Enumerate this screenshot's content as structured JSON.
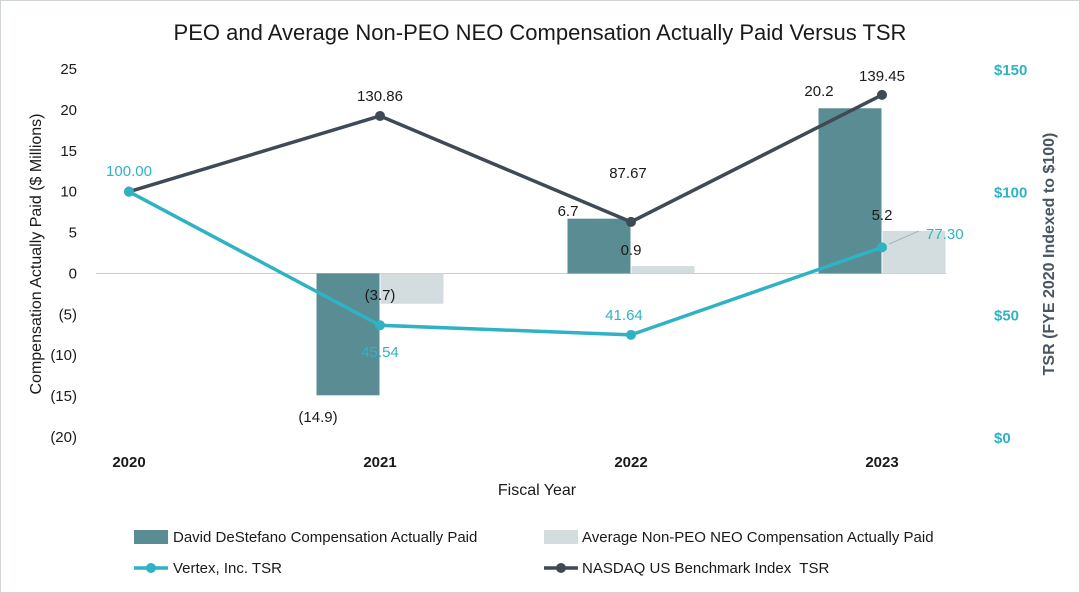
{
  "chart_data": {
    "type": "bar",
    "title": "PEO and Average Non-PEO NEO Compensation Actually Paid Versus TSR",
    "xlabel": "Fiscal Year",
    "ylabel": "Compensation Actually Paid ($ Millions)",
    "y2label": "TSR (FYE 2020 Indexed to $100)",
    "categories": [
      "2020",
      "2021",
      "2022",
      "2023"
    ],
    "ylim": [
      -20,
      25
    ],
    "y2lim": [
      0,
      150
    ],
    "yticks": [
      {
        "value": 25,
        "label": "25"
      },
      {
        "value": 20,
        "label": "20"
      },
      {
        "value": 15,
        "label": "15"
      },
      {
        "value": 10,
        "label": "10"
      },
      {
        "value": 5,
        "label": "5"
      },
      {
        "value": 0,
        "label": "0"
      },
      {
        "value": -5,
        "label": "(5)"
      },
      {
        "value": -10,
        "label": "(10)"
      },
      {
        "value": -15,
        "label": "(15)"
      },
      {
        "value": -20,
        "label": "(20)"
      }
    ],
    "y2ticks": [
      {
        "value": 150,
        "label": "$150"
      },
      {
        "value": 100,
        "label": "$100"
      },
      {
        "value": 50,
        "label": "$50"
      },
      {
        "value": 0,
        "label": "$0"
      }
    ],
    "bar_series": [
      {
        "name": "David DeStefano Compensation Actually Paid",
        "color": "#5a8d93",
        "values": [
          null,
          -14.9,
          6.7,
          20.2
        ],
        "labels": [
          "",
          "(14.9)",
          "6.7",
          "20.2"
        ]
      },
      {
        "name": "Average Non-PEO NEO Compensation Actually Paid",
        "color": "#d3dcdf",
        "values": [
          null,
          -3.7,
          0.9,
          5.2
        ],
        "labels": [
          "",
          "(3.7)",
          "0.9",
          "5.2"
        ]
      }
    ],
    "line_series": [
      {
        "name": "Vertex, Inc. TSR",
        "color": "#2fb3c4",
        "values": [
          100.0,
          45.54,
          41.64,
          77.3
        ],
        "labels": [
          "100.00",
          "45.54",
          "41.64",
          "77.30"
        ]
      },
      {
        "name": "NASDAQ US Benchmark Index  TSR",
        "color": "#3f4a56",
        "values": [
          100.0,
          130.86,
          87.67,
          139.45
        ],
        "labels": [
          "",
          "130.86",
          "87.67",
          "139.45"
        ]
      }
    ],
    "legend": "bottom"
  }
}
